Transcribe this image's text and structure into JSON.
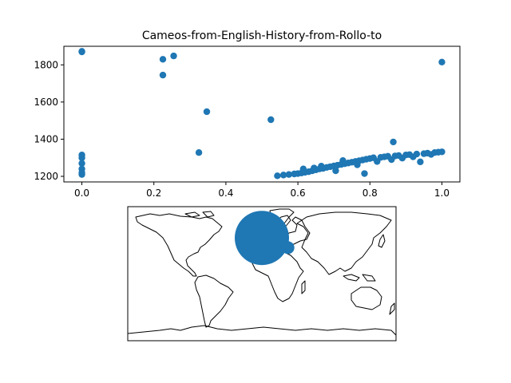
{
  "chart_data": [
    {
      "type": "scatter",
      "title": "Cameos-from-English-History-from-Rollo-to",
      "xlabel": "",
      "ylabel": "",
      "xlim": [
        -0.05,
        1.05
      ],
      "ylim": [
        1170,
        1900
      ],
      "x_ticks": [
        "0.0",
        "0.2",
        "0.4",
        "0.6",
        "0.8",
        "1.0"
      ],
      "y_ticks": [
        "1200",
        "1400",
        "1600",
        "1800"
      ],
      "grid": false,
      "marker_color": "#1f77b4",
      "points": [
        [
          0.0,
          1870
        ],
        [
          0.0,
          1873
        ],
        [
          0.0,
          1315
        ],
        [
          0.0,
          1300
        ],
        [
          0.0,
          1270
        ],
        [
          0.0,
          1240
        ],
        [
          0.0,
          1220
        ],
        [
          0.0,
          1210
        ],
        [
          0.225,
          1830
        ],
        [
          0.225,
          1745
        ],
        [
          0.255,
          1848
        ],
        [
          0.325,
          1328
        ],
        [
          0.347,
          1548
        ],
        [
          0.525,
          1505
        ],
        [
          0.543,
          1203
        ],
        [
          0.56,
          1207
        ],
        [
          0.575,
          1210
        ],
        [
          0.59,
          1213
        ],
        [
          0.6,
          1215
        ],
        [
          0.61,
          1218
        ],
        [
          0.615,
          1240
        ],
        [
          0.62,
          1222
        ],
        [
          0.63,
          1225
        ],
        [
          0.64,
          1230
        ],
        [
          0.645,
          1245
        ],
        [
          0.65,
          1235
        ],
        [
          0.66,
          1240
        ],
        [
          0.665,
          1255
        ],
        [
          0.67,
          1243
        ],
        [
          0.68,
          1248
        ],
        [
          0.69,
          1252
        ],
        [
          0.7,
          1256
        ],
        [
          0.705,
          1230
        ],
        [
          0.71,
          1260
        ],
        [
          0.72,
          1264
        ],
        [
          0.725,
          1285
        ],
        [
          0.73,
          1268
        ],
        [
          0.74,
          1272
        ],
        [
          0.75,
          1276
        ],
        [
          0.76,
          1280
        ],
        [
          0.765,
          1262
        ],
        [
          0.77,
          1284
        ],
        [
          0.78,
          1288
        ],
        [
          0.785,
          1215
        ],
        [
          0.79,
          1292
        ],
        [
          0.8,
          1296
        ],
        [
          0.81,
          1300
        ],
        [
          0.82,
          1280
        ],
        [
          0.83,
          1302
        ],
        [
          0.84,
          1305
        ],
        [
          0.85,
          1308
        ],
        [
          0.86,
          1290
        ],
        [
          0.865,
          1385
        ],
        [
          0.87,
          1310
        ],
        [
          0.88,
          1312
        ],
        [
          0.89,
          1298
        ],
        [
          0.9,
          1315
        ],
        [
          0.91,
          1317
        ],
        [
          0.92,
          1305
        ],
        [
          0.93,
          1320
        ],
        [
          0.94,
          1278
        ],
        [
          0.95,
          1322
        ],
        [
          0.96,
          1325
        ],
        [
          0.97,
          1318
        ],
        [
          0.98,
          1328
        ],
        [
          0.99,
          1330
        ],
        [
          1.0,
          1332
        ],
        [
          1.0,
          1815
        ]
      ]
    },
    {
      "type": "map",
      "projection": "plate-carree",
      "marker_color": "#1f77b4",
      "markers": [
        {
          "lon": 0,
          "lat": 48,
          "size": "large"
        },
        {
          "lon": 35,
          "lat": 35,
          "size": "small"
        }
      ]
    }
  ]
}
